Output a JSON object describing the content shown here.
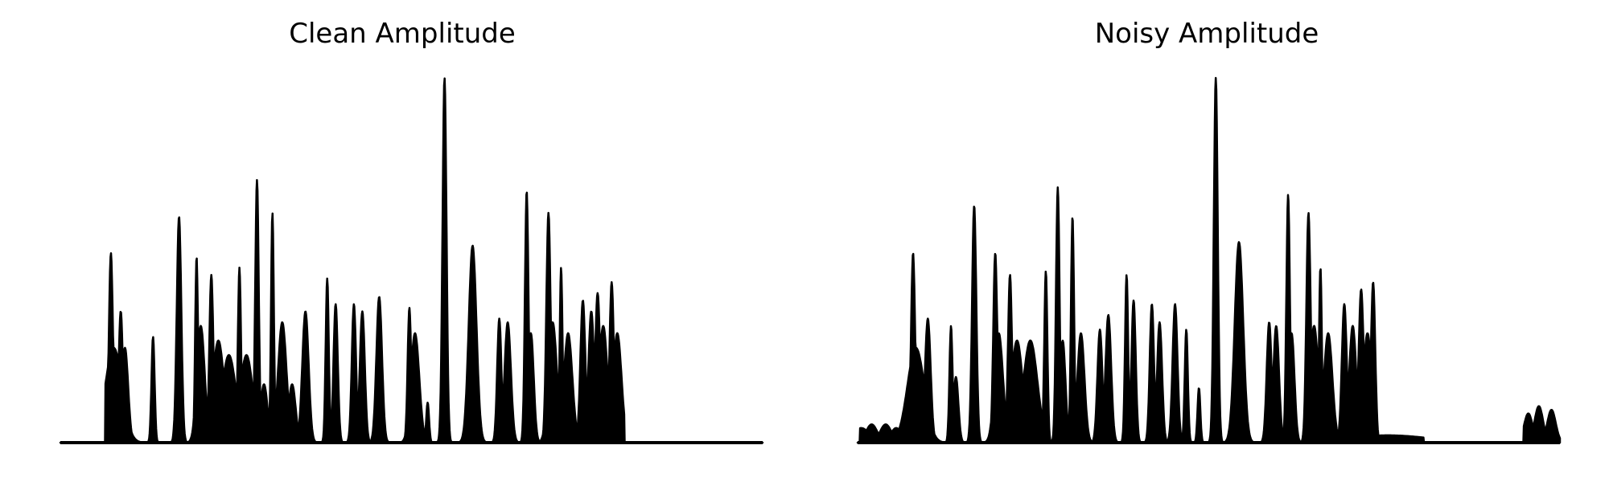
{
  "figure": {
    "left_title": "Clean Amplitude",
    "right_title": "Noisy Amplitude"
  },
  "chart_data": [
    {
      "type": "area",
      "title": "Clean Amplitude",
      "xlabel": "",
      "ylabel": "",
      "axes_visible": false,
      "grid": false,
      "color": "#000000",
      "xlim": [
        0,
        100
      ],
      "ylim": [
        0,
        1
      ],
      "peaks": [
        [
          7.2,
          0.52,
          0.28
        ],
        [
          7.6,
          0.26,
          1.2
        ],
        [
          8.6,
          0.36,
          0.3
        ],
        [
          9.2,
          0.26,
          0.45
        ],
        [
          13.2,
          0.29,
          0.22
        ],
        [
          16.9,
          0.62,
          0.32
        ],
        [
          19.4,
          0.51,
          0.2
        ],
        [
          20.0,
          0.32,
          0.55
        ],
        [
          21.5,
          0.46,
          0.28
        ],
        [
          22.5,
          0.28,
          0.8
        ],
        [
          24.0,
          0.24,
          1.0
        ],
        [
          25.5,
          0.48,
          0.22
        ],
        [
          26.5,
          0.24,
          0.9
        ],
        [
          28.0,
          0.72,
          0.25
        ],
        [
          29.0,
          0.16,
          0.5
        ],
        [
          30.2,
          0.63,
          0.2
        ],
        [
          31.6,
          0.33,
          0.6
        ],
        [
          33.0,
          0.16,
          0.5
        ],
        [
          34.9,
          0.36,
          0.45
        ],
        [
          38.0,
          0.45,
          0.22
        ],
        [
          39.2,
          0.38,
          0.3
        ],
        [
          41.8,
          0.38,
          0.3
        ],
        [
          43.0,
          0.36,
          0.35
        ],
        [
          45.4,
          0.4,
          0.4
        ],
        [
          49.7,
          0.37,
          0.25
        ],
        [
          50.5,
          0.3,
          0.6
        ],
        [
          52.3,
          0.11,
          0.2
        ],
        [
          54.7,
          1.0,
          0.28
        ],
        [
          58.7,
          0.54,
          0.55
        ],
        [
          62.5,
          0.34,
          0.3
        ],
        [
          63.7,
          0.33,
          0.45
        ],
        [
          66.4,
          0.69,
          0.25
        ],
        [
          67.0,
          0.3,
          0.4
        ],
        [
          69.5,
          0.63,
          0.3
        ],
        [
          70.1,
          0.33,
          0.6
        ],
        [
          71.3,
          0.48,
          0.2
        ],
        [
          72.3,
          0.3,
          0.6
        ],
        [
          74.4,
          0.39,
          0.35
        ],
        [
          75.6,
          0.36,
          0.4
        ],
        [
          76.5,
          0.41,
          0.35
        ],
        [
          77.3,
          0.32,
          0.6
        ],
        [
          78.5,
          0.44,
          0.3
        ],
        [
          79.3,
          0.3,
          0.6
        ]
      ],
      "segments": [
        [
          6.4,
          80.3
        ]
      ]
    },
    {
      "type": "area",
      "title": "Noisy Amplitude",
      "xlabel": "",
      "ylabel": "",
      "axes_visible": false,
      "grid": false,
      "color": "#000000",
      "xlim": [
        0,
        100
      ],
      "ylim": [
        0,
        1
      ],
      "peaks": [
        [
          0.5,
          0.04,
          1.2
        ],
        [
          2.0,
          0.05,
          0.8
        ],
        [
          4.0,
          0.05,
          0.8
        ],
        [
          5.5,
          0.04,
          0.8
        ],
        [
          7.9,
          0.52,
          0.28
        ],
        [
          8.3,
          0.26,
          1.2
        ],
        [
          10.0,
          0.34,
          0.4
        ],
        [
          13.3,
          0.32,
          0.22
        ],
        [
          14.0,
          0.18,
          0.35
        ],
        [
          16.6,
          0.65,
          0.3
        ],
        [
          19.6,
          0.52,
          0.28
        ],
        [
          20.1,
          0.3,
          0.6
        ],
        [
          21.7,
          0.46,
          0.28
        ],
        [
          22.7,
          0.28,
          0.8
        ],
        [
          24.6,
          0.28,
          1.0
        ],
        [
          26.8,
          0.47,
          0.22
        ],
        [
          28.5,
          0.7,
          0.25
        ],
        [
          29.2,
          0.28,
          0.4
        ],
        [
          30.6,
          0.62,
          0.22
        ],
        [
          31.8,
          0.3,
          0.5
        ],
        [
          34.5,
          0.31,
          0.35
        ],
        [
          35.7,
          0.35,
          0.4
        ],
        [
          38.3,
          0.46,
          0.22
        ],
        [
          39.3,
          0.39,
          0.3
        ],
        [
          41.9,
          0.38,
          0.3
        ],
        [
          43.0,
          0.33,
          0.35
        ],
        [
          45.2,
          0.38,
          0.35
        ],
        [
          46.8,
          0.31,
          0.22
        ],
        [
          48.6,
          0.15,
          0.2
        ],
        [
          51.0,
          1.0,
          0.28
        ],
        [
          54.3,
          0.55,
          0.6
        ],
        [
          58.6,
          0.33,
          0.35
        ],
        [
          59.6,
          0.32,
          0.4
        ],
        [
          61.3,
          0.68,
          0.25
        ],
        [
          61.8,
          0.3,
          0.4
        ],
        [
          64.2,
          0.63,
          0.3
        ],
        [
          65.0,
          0.32,
          0.6
        ],
        [
          65.9,
          0.48,
          0.2
        ],
        [
          67.0,
          0.3,
          0.6
        ],
        [
          69.3,
          0.38,
          0.35
        ],
        [
          70.5,
          0.32,
          0.5
        ],
        [
          71.7,
          0.42,
          0.35
        ],
        [
          72.6,
          0.3,
          0.6
        ],
        [
          73.4,
          0.44,
          0.3
        ],
        [
          75.5,
          0.02,
          6.0
        ],
        [
          95.5,
          0.08,
          0.6
        ],
        [
          97.0,
          0.1,
          0.6
        ],
        [
          98.8,
          0.09,
          0.6
        ]
      ],
      "segments": [
        [
          0.3,
          80.6
        ],
        [
          94.8,
          100.0
        ]
      ]
    }
  ]
}
